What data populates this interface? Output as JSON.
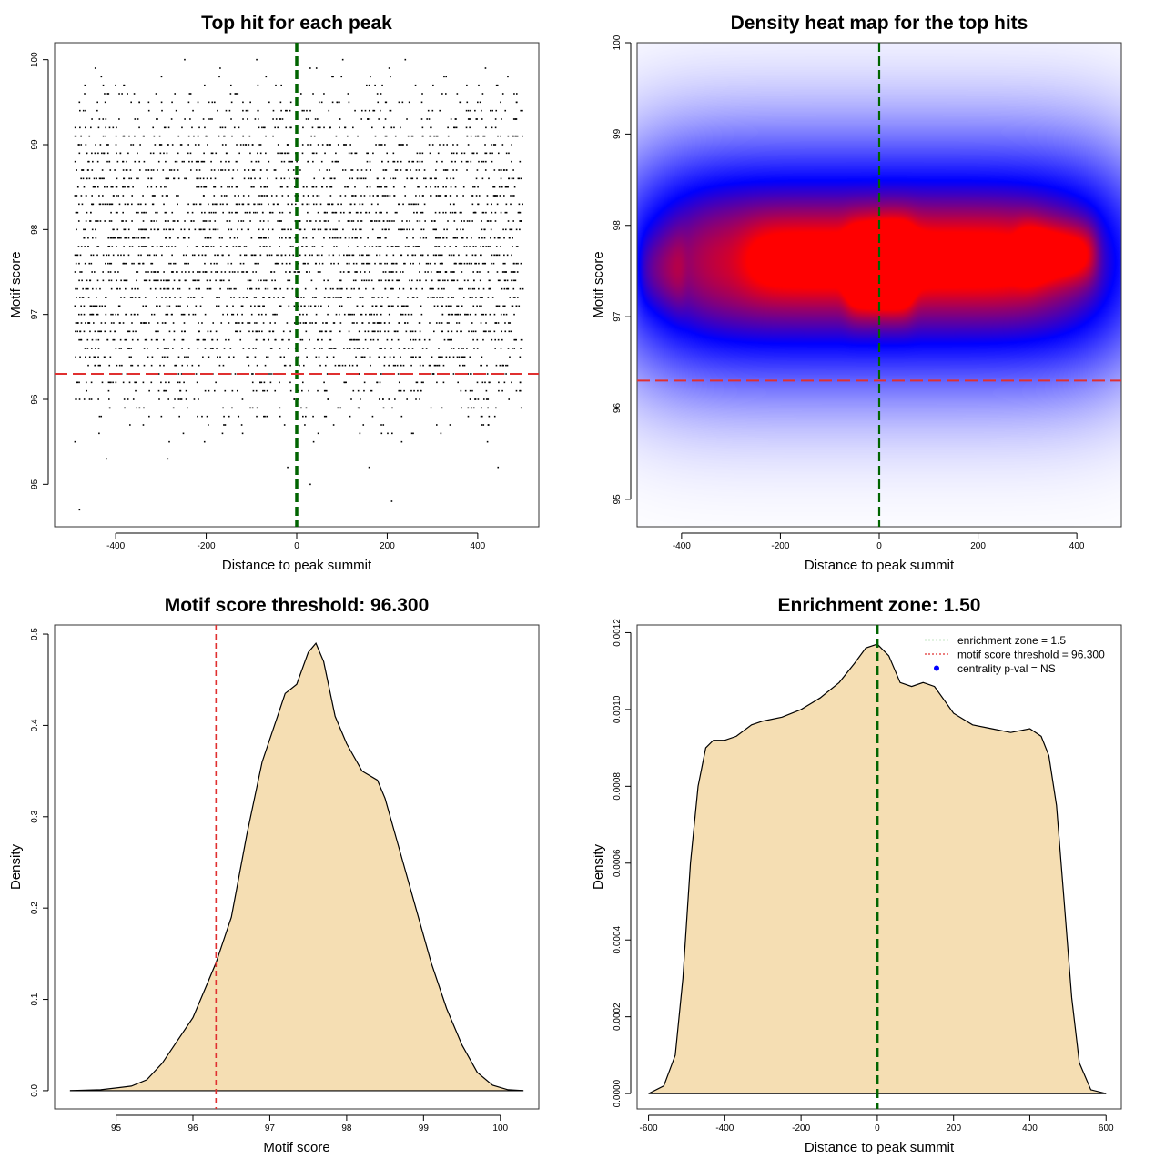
{
  "chart_data": [
    {
      "type": "scatter",
      "title": "Top hit for each peak",
      "xlabel": "Distance to peak summit",
      "ylabel": "Motif score",
      "xlim": [
        -535,
        535
      ],
      "ylim": [
        94.5,
        100.2
      ],
      "xticks": [
        -400,
        -200,
        0,
        200,
        400
      ],
      "yticks": [
        95,
        96,
        97,
        98,
        99,
        100
      ],
      "x_range": [
        -490,
        500
      ],
      "score_levels": [
        94.7,
        94.8,
        95.0,
        95.2,
        95.3,
        95.4,
        95.5,
        95.6,
        95.7,
        95.8,
        95.9,
        96.0,
        96.1,
        96.2,
        96.3,
        96.4,
        96.5,
        96.6,
        96.7,
        96.8,
        96.9,
        97.0,
        97.1,
        97.2,
        97.3,
        97.4,
        97.5,
        97.6,
        97.7,
        97.8,
        97.9,
        98.0,
        98.1,
        98.2,
        98.3,
        98.4,
        98.5,
        98.6,
        98.7,
        98.8,
        98.9,
        99.0,
        99.1,
        99.2,
        99.3,
        99.4,
        99.5,
        99.6,
        99.7,
        99.8,
        99.9,
        100.0
      ],
      "hits_per_level": [
        1,
        1,
        1,
        2,
        2,
        1,
        6,
        12,
        18,
        30,
        34,
        45,
        55,
        60,
        70,
        80,
        85,
        90,
        100,
        105,
        110,
        112,
        115,
        118,
        120,
        122,
        124,
        124,
        124,
        124,
        122,
        120,
        118,
        115,
        112,
        108,
        104,
        100,
        95,
        90,
        85,
        80,
        72,
        64,
        58,
        50,
        42,
        30,
        20,
        12,
        6,
        4
      ],
      "sparse_hits": [
        {
          "x": -480,
          "y": 94.7
        },
        {
          "x": 210,
          "y": 94.8
        },
        {
          "x": 30,
          "y": 95.0
        },
        {
          "x": 445,
          "y": 95.2
        },
        {
          "x": -20,
          "y": 95.2
        },
        {
          "x": -420,
          "y": 95.3
        },
        {
          "x": -285,
          "y": 95.3
        },
        {
          "x": 160,
          "y": 95.2
        }
      ],
      "reference_lines": [
        {
          "axis": "x",
          "value": 0,
          "color": "#006400",
          "style": "dashed"
        },
        {
          "axis": "y",
          "value": 96.3,
          "color": "#e03030",
          "style": "dashed"
        }
      ]
    },
    {
      "type": "heatmap",
      "title": "Density heat map for the top hits",
      "xlabel": "Distance to peak summit",
      "ylabel": "Motif score",
      "xlim": [
        -490,
        490
      ],
      "ylim": [
        94.7,
        100
      ],
      "xticks": [
        -400,
        -200,
        0,
        200,
        400
      ],
      "yticks": [
        95,
        96,
        97,
        98,
        99,
        100
      ],
      "colors": {
        "low": "#ffffff",
        "mid": "#0000ff",
        "high": "#ff0000"
      },
      "blobs": [
        {
          "x": 0,
          "y": 97.6,
          "sx": 470,
          "sy": 0.85,
          "w": 0.95
        },
        {
          "x": 0,
          "y": 97.5,
          "sx": 60,
          "sy": 0.3,
          "w": 0.42
        },
        {
          "x": 360,
          "y": 97.7,
          "sx": 70,
          "sy": 0.22,
          "w": 0.32
        },
        {
          "x": -100,
          "y": 97.65,
          "sx": 150,
          "sy": 0.3,
          "w": 0.18
        },
        {
          "x": 150,
          "y": 97.65,
          "sx": 150,
          "sy": 0.3,
          "w": 0.18
        },
        {
          "x": -440,
          "y": 97.5,
          "sx": 40,
          "sy": 0.3,
          "w": 0.12
        }
      ],
      "reference_lines": [
        {
          "axis": "x",
          "value": 0,
          "color": "#006400",
          "style": "dashed"
        },
        {
          "axis": "y",
          "value": 96.3,
          "color": "#e03030",
          "style": "dashed"
        }
      ]
    },
    {
      "type": "area",
      "title": "Motif score threshold: 96.300",
      "xlabel": "Motif score",
      "ylabel": "Density",
      "xlim": [
        94.2,
        100.5
      ],
      "ylim": [
        -0.02,
        0.51
      ],
      "xticks": [
        95,
        96,
        97,
        98,
        99,
        100
      ],
      "yticks": [
        0.0,
        0.1,
        0.2,
        0.3,
        0.4,
        0.5
      ],
      "ytick_labels": [
        "0.0",
        "0.1",
        "0.2",
        "0.3",
        "0.4",
        "0.5"
      ],
      "fill": "#f5deb3",
      "x": [
        94.4,
        94.8,
        95.2,
        95.4,
        95.6,
        95.8,
        96.0,
        96.2,
        96.3,
        96.5,
        96.7,
        96.9,
        97.1,
        97.2,
        97.35,
        97.5,
        97.6,
        97.7,
        97.85,
        98.0,
        98.2,
        98.4,
        98.5,
        98.7,
        98.9,
        99.1,
        99.3,
        99.5,
        99.7,
        99.9,
        100.1,
        100.3
      ],
      "y": [
        0.0,
        0.001,
        0.005,
        0.012,
        0.03,
        0.055,
        0.08,
        0.12,
        0.14,
        0.19,
        0.28,
        0.36,
        0.41,
        0.435,
        0.445,
        0.48,
        0.49,
        0.47,
        0.41,
        0.38,
        0.35,
        0.34,
        0.32,
        0.26,
        0.2,
        0.14,
        0.09,
        0.05,
        0.02,
        0.006,
        0.001,
        0.0
      ],
      "reference_lines": [
        {
          "axis": "x",
          "value": 96.3,
          "color": "#e03030",
          "style": "dashed"
        }
      ]
    },
    {
      "type": "area",
      "title": "Enrichment zone: 1.50",
      "xlabel": "Distance to peak summit",
      "ylabel": "Density",
      "xlim": [
        -630,
        640
      ],
      "ylim": [
        -4e-05,
        0.00122
      ],
      "xticks": [
        -600,
        -400,
        -200,
        0,
        200,
        400,
        600
      ],
      "yticks": [
        0,
        0.0002,
        0.0004,
        0.0006,
        0.0008,
        0.001,
        0.0012
      ],
      "ytick_labels": [
        "0.0000",
        "0.0002",
        "0.0004",
        "0.0006",
        "0.0008",
        "0.0010",
        "0.0012"
      ],
      "fill": "#f5deb3",
      "x": [
        -600,
        -560,
        -530,
        -510,
        -490,
        -470,
        -450,
        -430,
        -400,
        -370,
        -330,
        -300,
        -250,
        -200,
        -150,
        -100,
        -60,
        -30,
        0,
        30,
        60,
        90,
        120,
        150,
        200,
        250,
        300,
        350,
        400,
        430,
        450,
        470,
        490,
        510,
        530,
        560,
        600
      ],
      "y": [
        0.0,
        2e-05,
        0.0001,
        0.0003,
        0.0006,
        0.0008,
        0.0009,
        0.00092,
        0.00092,
        0.00093,
        0.00096,
        0.00097,
        0.00098,
        0.001,
        0.00103,
        0.00107,
        0.00112,
        0.00116,
        0.00117,
        0.00114,
        0.00107,
        0.00106,
        0.00107,
        0.00106,
        0.00099,
        0.00096,
        0.00095,
        0.00094,
        0.00095,
        0.00093,
        0.00088,
        0.00075,
        0.0005,
        0.00025,
        8e-05,
        1e-05,
        0.0
      ],
      "reference_lines": [
        {
          "axis": "x",
          "value": 0,
          "color": "#006400",
          "style": "dashed"
        }
      ],
      "legend": {
        "position": "top-right",
        "entries": [
          {
            "label": "enrichment zone = 1.5",
            "color": "#1a9a1a",
            "marker": "dotted-line"
          },
          {
            "label": "motif score threshold = 96.300",
            "color": "#e03030",
            "marker": "dotted-line"
          },
          {
            "label": "centrality p-val = NS",
            "color": "#0000ff",
            "marker": "dot"
          }
        ]
      }
    }
  ]
}
